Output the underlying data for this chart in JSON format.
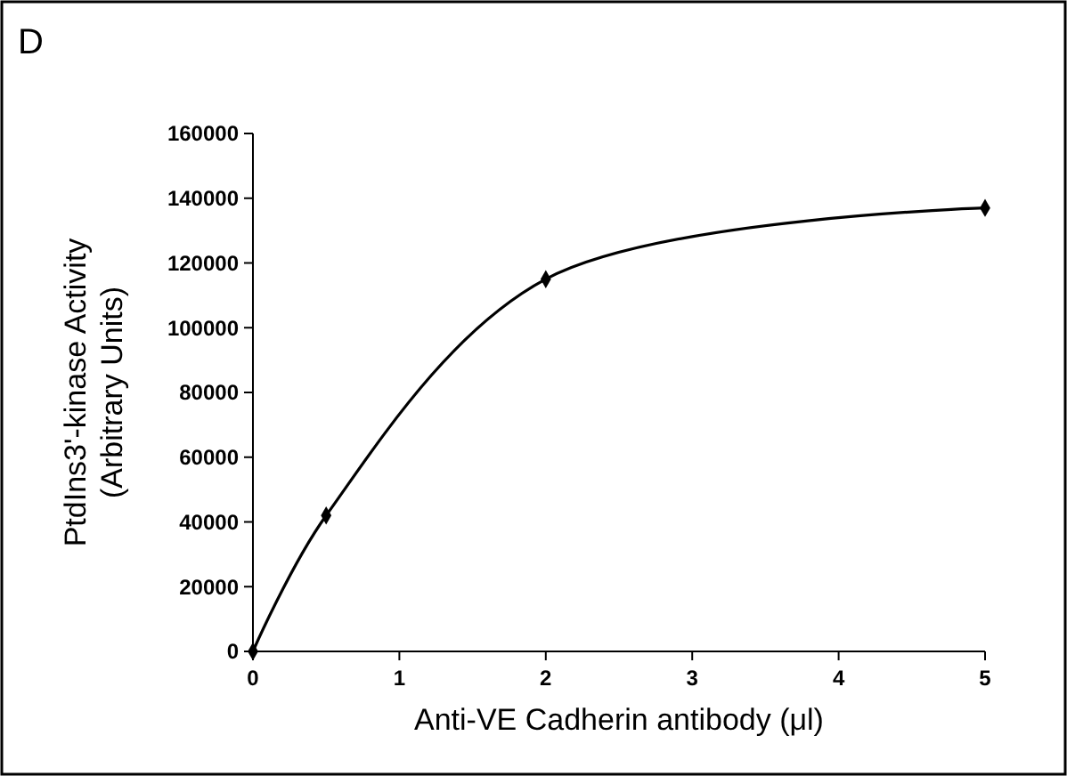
{
  "chart_data": {
    "type": "line",
    "title": "D",
    "xlabel": "Anti-VE Cadherin antibody (μl)",
    "ylabel": "PtdIns3'-kinase Activity\n(Arbitrary Units)",
    "x": [
      0,
      0.5,
      2,
      5
    ],
    "series": [
      {
        "color": "#000000",
        "values": [
          0,
          42000,
          115000,
          137000
        ]
      }
    ],
    "xlim": [
      0,
      5
    ],
    "xticks": [
      0,
      1,
      2,
      3,
      4,
      5
    ],
    "ylim": [
      0,
      160000
    ],
    "yticks": [
      0,
      20000,
      40000,
      60000,
      80000,
      100000,
      120000,
      140000,
      160000
    ],
    "marker": "diamond",
    "line_style": "solid"
  }
}
